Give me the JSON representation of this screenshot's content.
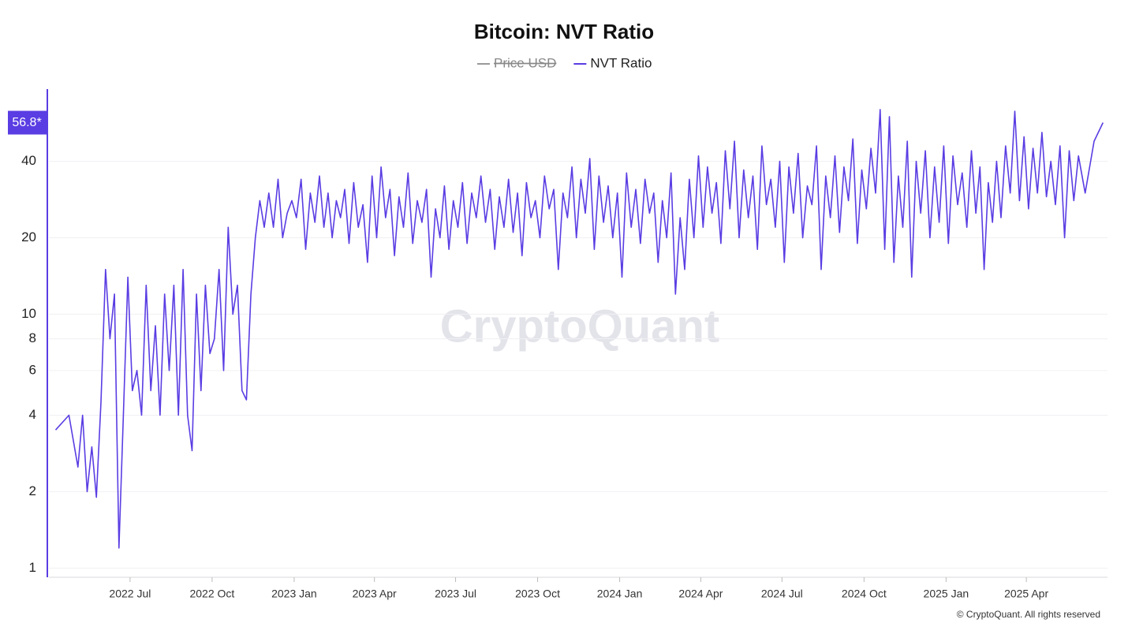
{
  "chart_data": {
    "type": "line",
    "title": "Bitcoin: NVT Ratio",
    "watermark": "CryptoQuant",
    "footer": "© CryptoQuant. All rights reserved",
    "log_scale": true,
    "grid": true,
    "ylim": [
      0.92,
      77
    ],
    "yticks": [
      1,
      2,
      4,
      6,
      8,
      10,
      20,
      40
    ],
    "xlim": [
      "2022-04",
      "2025-07"
    ],
    "xticks": [
      {
        "value": "2022-07",
        "label": "2022 Jul"
      },
      {
        "value": "2022-10",
        "label": "2022 Oct"
      },
      {
        "value": "2023-01",
        "label": "2023 Jan"
      },
      {
        "value": "2023-04",
        "label": "2023 Apr"
      },
      {
        "value": "2023-07",
        "label": "2023 Jul"
      },
      {
        "value": "2023-10",
        "label": "2023 Oct"
      },
      {
        "value": "2024-01",
        "label": "2024 Jan"
      },
      {
        "value": "2024-04",
        "label": "2024 Apr"
      },
      {
        "value": "2024-07",
        "label": "2024 Jul"
      },
      {
        "value": "2024-10",
        "label": "2024 Oct"
      },
      {
        "value": "2025-01",
        "label": "2025 Jan"
      },
      {
        "value": "2025-04",
        "label": "2025 Apr"
      }
    ],
    "x": [
      "2022-04",
      "2022-04",
      "2022-05",
      "2022-05",
      "2022-05",
      "2022-05",
      "2022-05",
      "2022-05",
      "2022-06",
      "2022-06",
      "2022-06",
      "2022-06",
      "2022-06",
      "2022-06",
      "2022-07",
      "2022-07",
      "2022-07",
      "2022-07",
      "2022-07",
      "2022-07",
      "2022-08",
      "2022-08",
      "2022-08",
      "2022-08",
      "2022-08",
      "2022-08",
      "2022-09",
      "2022-09",
      "2022-09",
      "2022-09",
      "2022-09",
      "2022-09",
      "2022-10",
      "2022-10",
      "2022-10",
      "2022-10",
      "2022-10",
      "2022-10",
      "2022-11",
      "2022-11",
      "2022-11",
      "2022-11",
      "2022-11",
      "2022-11",
      "2022-12",
      "2022-12",
      "2022-12",
      "2022-12",
      "2022-12",
      "2022-12",
      "2023-01",
      "2023-01",
      "2023-01",
      "2023-01",
      "2023-01",
      "2023-01",
      "2023-02",
      "2023-02",
      "2023-02",
      "2023-02",
      "2023-02",
      "2023-02",
      "2023-03",
      "2023-03",
      "2023-03",
      "2023-03",
      "2023-03",
      "2023-03",
      "2023-04",
      "2023-04",
      "2023-04",
      "2023-04",
      "2023-04",
      "2023-04",
      "2023-05",
      "2023-05",
      "2023-05",
      "2023-05",
      "2023-05",
      "2023-05",
      "2023-06",
      "2023-06",
      "2023-06",
      "2023-06",
      "2023-06",
      "2023-06",
      "2023-07",
      "2023-07",
      "2023-07",
      "2023-07",
      "2023-07",
      "2023-07",
      "2023-08",
      "2023-08",
      "2023-08",
      "2023-08",
      "2023-08",
      "2023-08",
      "2023-09",
      "2023-09",
      "2023-09",
      "2023-09",
      "2023-09",
      "2023-09",
      "2023-10",
      "2023-10",
      "2023-10",
      "2023-10",
      "2023-10",
      "2023-10",
      "2023-11",
      "2023-11",
      "2023-11",
      "2023-11",
      "2023-11",
      "2023-11",
      "2023-12",
      "2023-12",
      "2023-12",
      "2023-12",
      "2023-12",
      "2023-12",
      "2024-01",
      "2024-01",
      "2024-01",
      "2024-01",
      "2024-01",
      "2024-01",
      "2024-02",
      "2024-02",
      "2024-02",
      "2024-02",
      "2024-02",
      "2024-02",
      "2024-03",
      "2024-03",
      "2024-03",
      "2024-03",
      "2024-03",
      "2024-03",
      "2024-04",
      "2024-04",
      "2024-04",
      "2024-04",
      "2024-04",
      "2024-04",
      "2024-05",
      "2024-05",
      "2024-05",
      "2024-05",
      "2024-05",
      "2024-05",
      "2024-06",
      "2024-06",
      "2024-06",
      "2024-06",
      "2024-06",
      "2024-06",
      "2024-07",
      "2024-07",
      "2024-07",
      "2024-07",
      "2024-07",
      "2024-07",
      "2024-08",
      "2024-08",
      "2024-08",
      "2024-08",
      "2024-08",
      "2024-08",
      "2024-09",
      "2024-09",
      "2024-09",
      "2024-09",
      "2024-09",
      "2024-09",
      "2024-10",
      "2024-10",
      "2024-10",
      "2024-10",
      "2024-10",
      "2024-10",
      "2024-11",
      "2024-11",
      "2024-11",
      "2024-11",
      "2024-11",
      "2024-11",
      "2024-12",
      "2024-12",
      "2024-12",
      "2024-12",
      "2024-12",
      "2024-12",
      "2025-01",
      "2025-01",
      "2025-01",
      "2025-01",
      "2025-01",
      "2025-01",
      "2025-02",
      "2025-02",
      "2025-02",
      "2025-02",
      "2025-02",
      "2025-02",
      "2025-03",
      "2025-03",
      "2025-03",
      "2025-03",
      "2025-03",
      "2025-03",
      "2025-04",
      "2025-04",
      "2025-04",
      "2025-04",
      "2025-04",
      "2025-04",
      "2025-05",
      "2025-05",
      "2025-05",
      "2025-05",
      "2025-05",
      "2025-05",
      "2025-06",
      "2025-06",
      "2025-06"
    ],
    "series": [
      {
        "name": "Price USD",
        "color": "#888888",
        "visible": false
      },
      {
        "name": "NVT Ratio",
        "color": "#5a3de3",
        "visible": true,
        "current_label": "56.8*",
        "values": [
          3.5,
          4,
          2.5,
          4,
          2,
          3,
          1.9,
          4.5,
          15,
          8,
          12,
          1.2,
          4,
          14,
          5,
          6,
          4,
          13,
          5,
          9,
          4,
          12,
          6,
          13,
          4,
          15,
          4,
          2.9,
          12,
          5,
          13,
          7,
          8,
          15,
          6,
          22,
          10,
          13,
          5,
          4.6,
          12,
          20,
          28,
          22,
          30,
          22,
          34,
          20,
          25,
          28,
          24,
          34,
          18,
          30,
          23,
          35,
          22,
          30,
          20,
          28,
          24,
          31,
          19,
          33,
          22,
          27,
          16,
          35,
          20,
          38,
          24,
          31,
          17,
          29,
          22,
          36,
          19,
          28,
          23,
          31,
          14,
          26,
          20,
          32,
          18,
          28,
          22,
          33,
          19,
          30,
          24,
          35,
          23,
          31,
          18,
          29,
          22,
          34,
          21,
          30,
          17,
          33,
          24,
          28,
          20,
          35,
          26,
          31,
          15,
          30,
          24,
          38,
          20,
          34,
          25,
          41,
          18,
          35,
          23,
          32,
          20,
          30,
          14,
          36,
          22,
          31,
          19,
          34,
          25,
          30,
          16,
          28,
          20,
          36,
          12,
          24,
          15,
          34,
          20,
          42,
          22,
          38,
          25,
          33,
          19,
          44,
          26,
          48,
          20,
          37,
          24,
          35,
          18,
          46,
          27,
          34,
          22,
          40,
          16,
          38,
          25,
          43,
          20,
          32,
          27,
          46,
          15,
          35,
          24,
          42,
          21,
          38,
          28,
          49,
          19,
          37,
          26,
          45,
          30,
          64,
          18,
          60,
          16,
          35,
          22,
          48,
          14,
          40,
          25,
          44,
          20,
          38,
          23,
          46,
          19,
          42,
          27,
          36,
          22,
          44,
          25,
          38,
          15,
          33,
          23,
          40,
          24,
          46,
          30,
          63,
          28,
          50,
          26,
          45,
          30,
          52,
          29,
          40,
          27,
          46,
          20,
          44,
          28,
          42,
          30,
          48,
          56.8
        ]
      }
    ]
  }
}
